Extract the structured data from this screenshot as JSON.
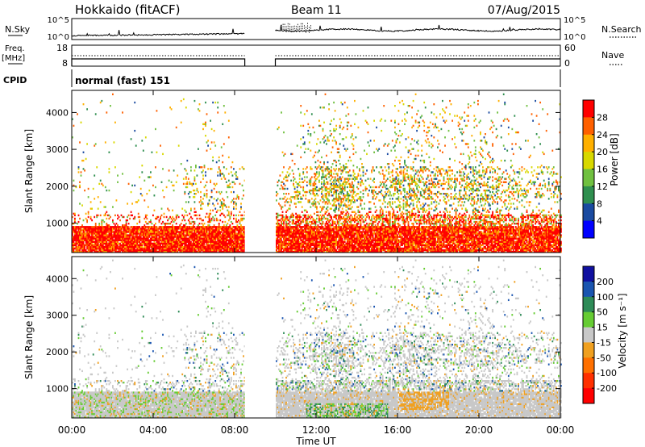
{
  "header": {
    "radar": "Hokkaido (fitACF)",
    "beam": "Beam 11",
    "date": "07/Aug/2015"
  },
  "strip": {
    "left_top_label": "N.Sky",
    "left_top_ticks": [
      "10^5",
      "10^0"
    ],
    "right_top_label": "N.Search",
    "right_top_ticks": [
      "10^5",
      "10^0"
    ],
    "freq_label": "Freq.",
    "freq_unit": "[MHz]",
    "freq_ticks": [
      "18",
      "8"
    ],
    "nave_label": "Nave",
    "nave_ticks": [
      "60",
      "0"
    ],
    "cpid_label": "CPID",
    "cpid_value": "normal (fast) 151"
  },
  "chart_data": [
    {
      "type": "heatmap",
      "panel": "power",
      "ylabel": "Slant Range [km]",
      "yticks": [
        1000,
        2000,
        3000,
        4000
      ],
      "ylim": [
        200,
        4600
      ],
      "xlim_hours": [
        0,
        24
      ],
      "data_gap_hours": [
        8.5,
        10.0
      ],
      "colorbar": {
        "label": "Power [dB]",
        "ticks": [
          "28",
          "24",
          "20",
          "16",
          "12",
          "8",
          "4"
        ],
        "colors": [
          "#ff0000",
          "#ff6000",
          "#ffb000",
          "#d8d800",
          "#70c040",
          "#2f8f4f",
          "#1a4aa0",
          "#0000ff"
        ]
      }
    },
    {
      "type": "heatmap",
      "panel": "velocity",
      "ylabel": "Slant Range [km]",
      "yticks": [
        1000,
        2000,
        3000,
        4000
      ],
      "ylim": [
        200,
        4600
      ],
      "xlim_hours": [
        0,
        24
      ],
      "data_gap_hours": [
        8.5,
        10.0
      ],
      "colorbar": {
        "label": "Velocity [m s⁻¹]",
        "ticks": [
          "200",
          "100",
          "50",
          "15",
          "-15",
          "-50",
          "-100",
          "-200"
        ],
        "colors": [
          "#1010a0",
          "#1a55b0",
          "#2e8b57",
          "#66cc33",
          "#c8c8c8",
          "#f0a020",
          "#ff7000",
          "#ff3000",
          "#ff0000"
        ]
      }
    }
  ],
  "xaxis": {
    "label": "Time UT",
    "ticks": [
      "00:00",
      "04:00",
      "08:00",
      "12:00",
      "16:00",
      "20:00",
      "00:00"
    ]
  }
}
